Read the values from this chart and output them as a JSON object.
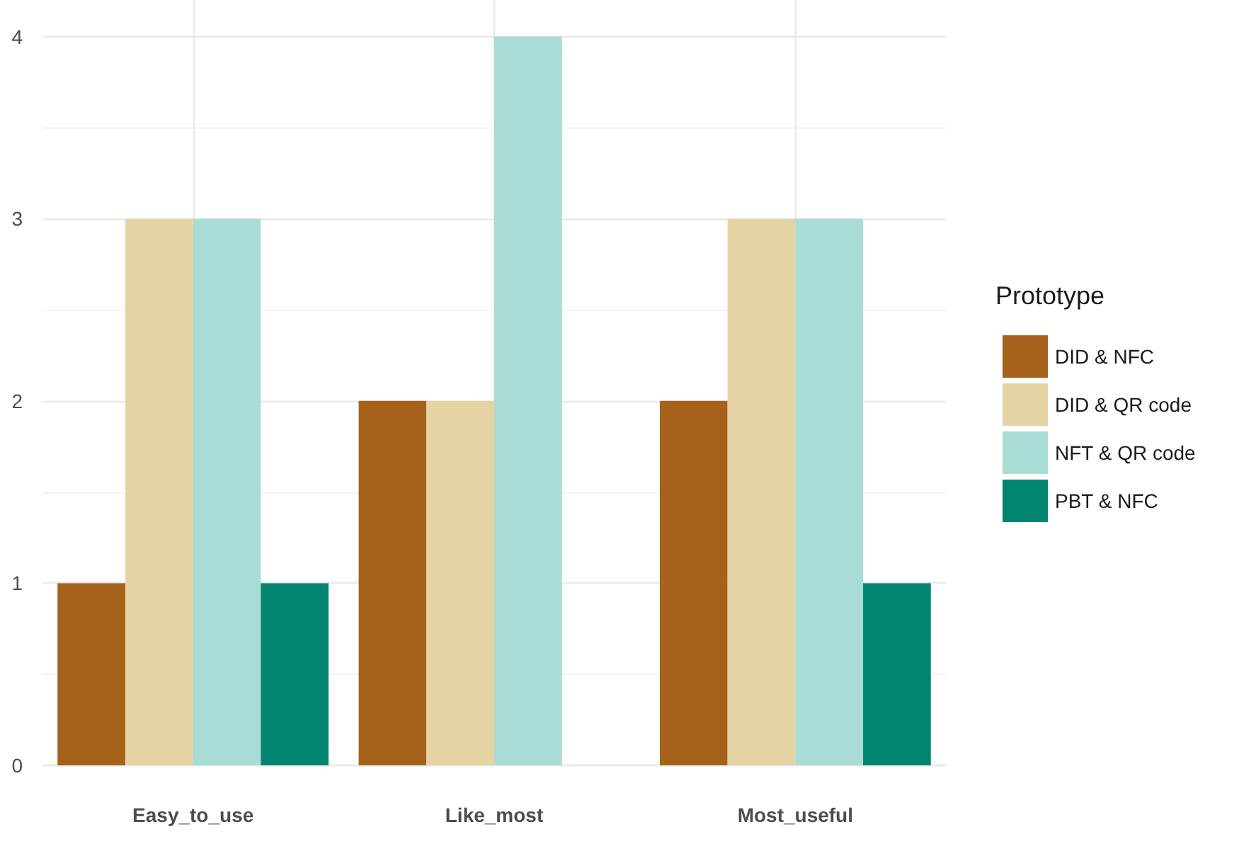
{
  "chart_data": {
    "type": "bar",
    "categories": [
      "Easy_to_use",
      "Like_most",
      "Most_useful"
    ],
    "legend_title": "Prototype",
    "series": [
      {
        "name": "DID & NFC",
        "color": "#a6611a",
        "values": [
          1,
          2,
          2
        ]
      },
      {
        "name": "DID & QR code",
        "color": "#e6d3a3",
        "values": [
          3,
          2,
          3
        ]
      },
      {
        "name": "NFT & QR code",
        "color": "#a9dcd4",
        "values": [
          3,
          4,
          3
        ]
      },
      {
        "name": "PBT & NFC",
        "color": "#018571",
        "values": [
          1,
          0,
          1
        ]
      }
    ],
    "ylim": [
      0,
      4.2
    ],
    "yticks": [
      0,
      1,
      2,
      3,
      4
    ],
    "grid": true,
    "legend": "right"
  }
}
